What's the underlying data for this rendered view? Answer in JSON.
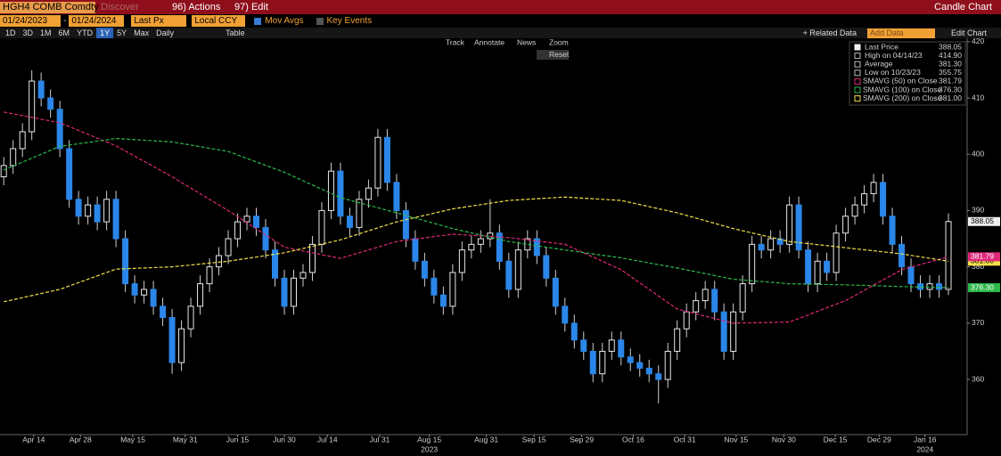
{
  "header": {
    "ticker": "HGH4 COMB Comdty",
    "discover": "Discover",
    "actions": "96) Actions",
    "edit": "97) Edit",
    "title": "Candle Chart"
  },
  "controls": {
    "start": "01/24/2023",
    "dash": "-",
    "end": "01/24/2024",
    "field": "Last Px",
    "currency": "Local CCY",
    "mov_avgs": "Mov Avgs",
    "key_events": "Key Events"
  },
  "periods": [
    "1D",
    "3D",
    "1M",
    "6M",
    "YTD",
    "1Y",
    "5Y",
    "Max"
  ],
  "frequency": "Daily",
  "table": "Table",
  "related_data": "+ Related Data",
  "add_data": "Add Data",
  "edit_chart": "Edit Chart",
  "tools": [
    "Track",
    "Annotate",
    "News",
    "Zoom"
  ],
  "reset": "Reset",
  "chart_data": {
    "type": "candlestick",
    "open": [
      396,
      398,
      401,
      404,
      413,
      410,
      408,
      401,
      392,
      389,
      391,
      388,
      392,
      385,
      377,
      375,
      376,
      373,
      371,
      363,
      369,
      373,
      377,
      380,
      382,
      385,
      388,
      389,
      387,
      383,
      378,
      373,
      378,
      379,
      384,
      390,
      397,
      389,
      387,
      392,
      394,
      403,
      395,
      390,
      385,
      381,
      378,
      375,
      373,
      379,
      383,
      384,
      385,
      386,
      381,
      376,
      383,
      385,
      382,
      378,
      373,
      370,
      367,
      365,
      361,
      365,
      367,
      364,
      363,
      362,
      361,
      360,
      365,
      369,
      372,
      374,
      376,
      372,
      365,
      372,
      377,
      384,
      383,
      385,
      384,
      391,
      383,
      377,
      381,
      379,
      386,
      389,
      391,
      393,
      395,
      389,
      384,
      380,
      377,
      376,
      377,
      376
    ],
    "high": [
      399.5,
      402.5,
      405.5,
      414.9,
      414.5,
      411.5,
      409.5,
      402.5,
      393.5,
      392.5,
      392.5,
      393.5,
      393.5,
      386.5,
      378.5,
      377.5,
      377.5,
      374.5,
      372.5,
      370.5,
      374.5,
      378.5,
      381.5,
      383.5,
      386.5,
      389.5,
      390.5,
      390.5,
      388.5,
      384.5,
      379.5,
      379.5,
      380.5,
      385.5,
      391.5,
      398.5,
      398.5,
      390.5,
      393.5,
      395.5,
      404.5,
      404.5,
      396.5,
      391.5,
      386.5,
      382.5,
      379.5,
      376.5,
      380.5,
      384.5,
      385.5,
      386.5,
      392,
      387.5,
      382.5,
      384.5,
      386.5,
      386.5,
      383.5,
      379.5,
      374.5,
      371.5,
      368.5,
      366.5,
      366.5,
      368.5,
      368.5,
      365.5,
      364.5,
      363.5,
      362.5,
      366.5,
      370.5,
      373.5,
      375.5,
      377.5,
      377.5,
      373.5,
      373.5,
      378.5,
      385.5,
      385.5,
      386.5,
      386.5,
      392.5,
      392.5,
      384.5,
      382.5,
      382.5,
      387.5,
      390.5,
      392.5,
      394.5,
      396.5,
      396.5,
      390.5,
      385.5,
      381.5,
      378.5,
      378.5,
      378.5,
      389.5
    ],
    "low": [
      394.5,
      396.5,
      399.5,
      402.5,
      408.5,
      406.5,
      399.5,
      390.5,
      387.5,
      387.5,
      386.5,
      386.5,
      383.5,
      375.5,
      373.5,
      373.5,
      371.5,
      369.5,
      361,
      361.5,
      367.5,
      371.5,
      375.5,
      378.5,
      380.5,
      383.5,
      386.5,
      385.5,
      381.5,
      376.5,
      371.5,
      371.5,
      376.5,
      377.5,
      382.5,
      388.5,
      387.5,
      385.5,
      385.5,
      390.5,
      392.5,
      393.5,
      388.5,
      383.5,
      379.5,
      376.5,
      373.5,
      371.5,
      371.5,
      377.5,
      381.5,
      382.5,
      383.5,
      379.5,
      374.5,
      374.5,
      381.5,
      380.5,
      376.5,
      371.5,
      368.5,
      365.5,
      363.5,
      359.5,
      359.5,
      363.5,
      362.5,
      361.5,
      360.5,
      359.5,
      355.75,
      358.5,
      363.5,
      367.5,
      370.5,
      372.5,
      370.5,
      363.5,
      363.5,
      370.5,
      375.5,
      381.5,
      381.5,
      382.5,
      382.5,
      381.5,
      375.5,
      375.5,
      377.5,
      377.5,
      384.5,
      387.5,
      389.5,
      391.5,
      387.5,
      382.5,
      378.5,
      375.5,
      374.5,
      374.5,
      374.5,
      375
    ],
    "close": [
      398,
      401,
      404,
      413,
      410,
      408,
      401,
      392,
      389,
      391,
      388,
      392,
      385,
      377,
      375,
      376,
      373,
      371,
      363,
      369,
      373,
      377,
      380,
      382,
      385,
      388,
      389,
      387,
      383,
      378,
      373,
      378,
      379,
      384,
      390,
      397,
      389,
      387,
      392,
      394,
      403,
      395,
      390,
      385,
      381,
      378,
      375,
      373,
      379,
      383,
      384,
      385,
      386,
      381,
      376,
      383,
      385,
      382,
      378,
      373,
      370,
      367,
      365,
      361,
      365,
      367,
      364,
      363,
      362,
      361,
      360,
      365,
      369,
      372,
      374,
      376,
      372,
      365,
      372,
      377,
      384,
      383,
      385,
      384,
      391,
      383,
      377,
      381,
      379,
      386,
      389,
      391,
      393,
      395,
      389,
      384,
      380,
      377,
      376,
      377,
      376,
      388.05
    ],
    "up_color": "#e8e8e8",
    "down_color": "#2a86e8",
    "stats": [
      {
        "label": "Last Price",
        "value": "388.05"
      },
      {
        "label": "High on 04/14/23",
        "value": "414.90"
      },
      {
        "label": "Average",
        "value": "381.30"
      },
      {
        "label": "Low on 10/23/23",
        "value": "355.75"
      }
    ],
    "series": [
      {
        "name": "SMAVG (50) on Close",
        "color": "#e0287a",
        "last_label": "381.79",
        "x": [
          0,
          6,
          12,
          18,
          24,
          30,
          36,
          42,
          48,
          54,
          60,
          66,
          72,
          78,
          84,
          90,
          96,
          101
        ],
        "values": [
          407.5,
          405.6,
          401.5,
          396,
          390,
          383.5,
          381.5,
          384.5,
          385.8,
          385.2,
          384,
          379.5,
          372.5,
          370,
          370.2,
          374,
          379.5,
          381.79
        ]
      },
      {
        "name": "SMAVG (100) on Close",
        "color": "#2db84b",
        "last_label": "376.30",
        "x": [
          0,
          6,
          12,
          18,
          24,
          30,
          36,
          42,
          48,
          54,
          60,
          66,
          72,
          78,
          84,
          90,
          96,
          101
        ],
        "values": [
          397.2,
          401.4,
          402.8,
          402.2,
          400.5,
          396.8,
          392.3,
          389.6,
          386.8,
          384.5,
          383,
          381.6,
          379.8,
          377.8,
          377,
          376.8,
          376.5,
          376.3
        ]
      },
      {
        "name": "SMAVG (200) on Close",
        "color": "#f2e04a",
        "last_label": "381.00",
        "x": [
          0,
          6,
          12,
          18,
          24,
          30,
          36,
          42,
          48,
          54,
          60,
          66,
          72,
          78,
          84,
          90,
          96,
          101
        ],
        "values": [
          373.8,
          376,
          379.6,
          380,
          381,
          382.5,
          384.8,
          388,
          390.3,
          391.8,
          392.4,
          391.8,
          389.6,
          386.8,
          384.5,
          383.4,
          382.3,
          381
        ]
      }
    ],
    "ylim": [
      350.2,
      420.6
    ],
    "yticks": [
      360,
      370,
      380,
      390,
      400,
      410,
      420
    ],
    "xlim": [
      -0.4,
      103
    ],
    "xticks": [
      {
        "value": 3.2,
        "label": "Apr 14"
      },
      {
        "value": 8.2,
        "label": "Apr 28"
      },
      {
        "value": 13.8,
        "label": "May 15"
      },
      {
        "value": 19.4,
        "label": "May 31"
      },
      {
        "value": 25,
        "label": "Jun 15"
      },
      {
        "value": 30,
        "label": "Jun 30"
      },
      {
        "value": 34.6,
        "label": "Jul 14"
      },
      {
        "value": 40.2,
        "label": "Jul 31"
      },
      {
        "value": 45.5,
        "label": "Aug 15"
      },
      {
        "value": 51.6,
        "label": "Aug 31"
      },
      {
        "value": 56.7,
        "label": "Sep 15"
      },
      {
        "value": 61.8,
        "label": "Sep 29"
      },
      {
        "value": 67.3,
        "label": "Oct 16"
      },
      {
        "value": 72.8,
        "label": "Oct 31"
      },
      {
        "value": 78.3,
        "label": "Nov 15"
      },
      {
        "value": 83.4,
        "label": "Nov 30"
      },
      {
        "value": 88.9,
        "label": "Dec 15"
      },
      {
        "value": 93.6,
        "label": "Dec 29"
      },
      {
        "value": 98.5,
        "label": "Jan 16"
      }
    ],
    "year_labels": [
      {
        "value": 45.5,
        "label": "2023"
      },
      {
        "value": 98.5,
        "label": "2024"
      }
    ]
  }
}
